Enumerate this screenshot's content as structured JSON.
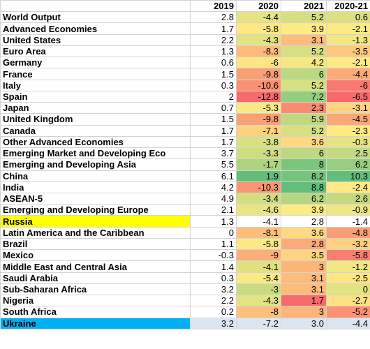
{
  "header": {
    "blank": "",
    "col_2019": "2019",
    "col_2020": "2020",
    "col_2021": "2021",
    "col_2020_21": "2020-21"
  },
  "colors": {
    "red": "#f8696b",
    "yellow": "#ffeb84",
    "green": "#63be7b",
    "row_highlight_yellow": "#ffff00",
    "row_highlight_blue": "#00b0f0"
  },
  "rows": [
    {
      "name": "World Output",
      "v2019": "2.8",
      "v2020": "-4.4",
      "v2021": "5.2",
      "v2020_21": "0.6"
    },
    {
      "name": "Advanced Economies",
      "v2019": "1.7",
      "v2020": "-5.8",
      "v2021": "3.9",
      "v2020_21": "-2.1"
    },
    {
      "name": "United States",
      "v2019": "2.2",
      "v2020": "-4.3",
      "v2021": "3.1",
      "v2020_21": "-1.3"
    },
    {
      "name": "Euro Area",
      "v2019": "1.3",
      "v2020": "-8.3",
      "v2021": "5.2",
      "v2020_21": "-3.5"
    },
    {
      "name": "Germany",
      "v2019": "0.6",
      "v2020": "-6",
      "v2021": "4.2",
      "v2020_21": "-2.1"
    },
    {
      "name": "France",
      "v2019": "1.5",
      "v2020": "-9.8",
      "v2021": "6",
      "v2020_21": "-4.4"
    },
    {
      "name": "Italy",
      "v2019": "0.3",
      "v2020": "-10.6",
      "v2021": "5.2",
      "v2020_21": "-6"
    },
    {
      "name": "Spain",
      "v2019": "2",
      "v2020": "-12.8",
      "v2021": "7.2",
      "v2020_21": "-6.5"
    },
    {
      "name": "Japan",
      "v2019": "0.7",
      "v2020": "-5.3",
      "v2021": "2.3",
      "v2020_21": "-3.1"
    },
    {
      "name": "United Kingdom",
      "v2019": "1.5",
      "v2020": "-9.8",
      "v2021": "5.9",
      "v2020_21": "-4.5"
    },
    {
      "name": "Canada",
      "v2019": "1.7",
      "v2020": "-7.1",
      "v2021": "5.2",
      "v2020_21": "-2.3"
    },
    {
      "name": "Other Advanced Economies",
      "v2019": "1.7",
      "v2020": "-3.8",
      "v2021": "3.6",
      "v2020_21": "-0.3"
    },
    {
      "name": "Emerging Market and Developing Eco",
      "v2019": "3.7",
      "v2020": "-3.3",
      "v2021": "6",
      "v2020_21": "2.5"
    },
    {
      "name": "Emerging and Developing Asia",
      "v2019": "5.5",
      "v2020": "-1.7",
      "v2021": "8",
      "v2020_21": "6.2"
    },
    {
      "name": "China",
      "v2019": "6.1",
      "v2020": "1.9",
      "v2021": "8.2",
      "v2020_21": "10.3"
    },
    {
      "name": "India",
      "v2019": "4.2",
      "v2020": "-10.3",
      "v2021": "8.8",
      "v2020_21": "-2.4"
    },
    {
      "name": "ASEAN-5",
      "v2019": "4.9",
      "v2020": "-3.4",
      "v2021": "6.2",
      "v2020_21": "2.6"
    },
    {
      "name": "Emerging and Developing Europe",
      "v2019": "2.1",
      "v2020": "-4.6",
      "v2021": "3.9",
      "v2020_21": "-0.9"
    },
    {
      "name": "Russia",
      "v2019": "1.3",
      "v2020": "-4.1",
      "v2021": "2.8",
      "v2020_21": "-1.4",
      "highlight": "yellow"
    },
    {
      "name": "Latin America and the Caribbean",
      "v2019": "0",
      "v2020": "-8.1",
      "v2021": "3.6",
      "v2020_21": "-4.8"
    },
    {
      "name": "Brazil",
      "v2019": "1.1",
      "v2020": "-5.8",
      "v2021": "2.8",
      "v2020_21": "-3.2"
    },
    {
      "name": "Mexico",
      "v2019": "-0.3",
      "v2020": "-9",
      "v2021": "3.5",
      "v2020_21": "-5.8"
    },
    {
      "name": "Middle East and Central Asia",
      "v2019": "1.4",
      "v2020": "-4.1",
      "v2021": "3",
      "v2020_21": "-1.2"
    },
    {
      "name": "Saudi Arabia",
      "v2019": "0.3",
      "v2020": "-5.4",
      "v2021": "3.1",
      "v2020_21": "-2.5"
    },
    {
      "name": "Sub-Saharan Africa",
      "v2019": "3.2",
      "v2020": "-3",
      "v2021": "3.1",
      "v2020_21": "0"
    },
    {
      "name": "Nigeria",
      "v2019": "2.2",
      "v2020": "-4.3",
      "v2021": "1.7",
      "v2020_21": "-2.7"
    },
    {
      "name": "South Africa",
      "v2019": "0.2",
      "v2020": "-8",
      "v2021": "3",
      "v2020_21": "-5.2"
    },
    {
      "name": "Ukraine",
      "v2019": "3.2",
      "v2020": "-7.2",
      "v2021": "3.0",
      "v2020_21": "-4.4",
      "highlight": "blue"
    }
  ]
}
